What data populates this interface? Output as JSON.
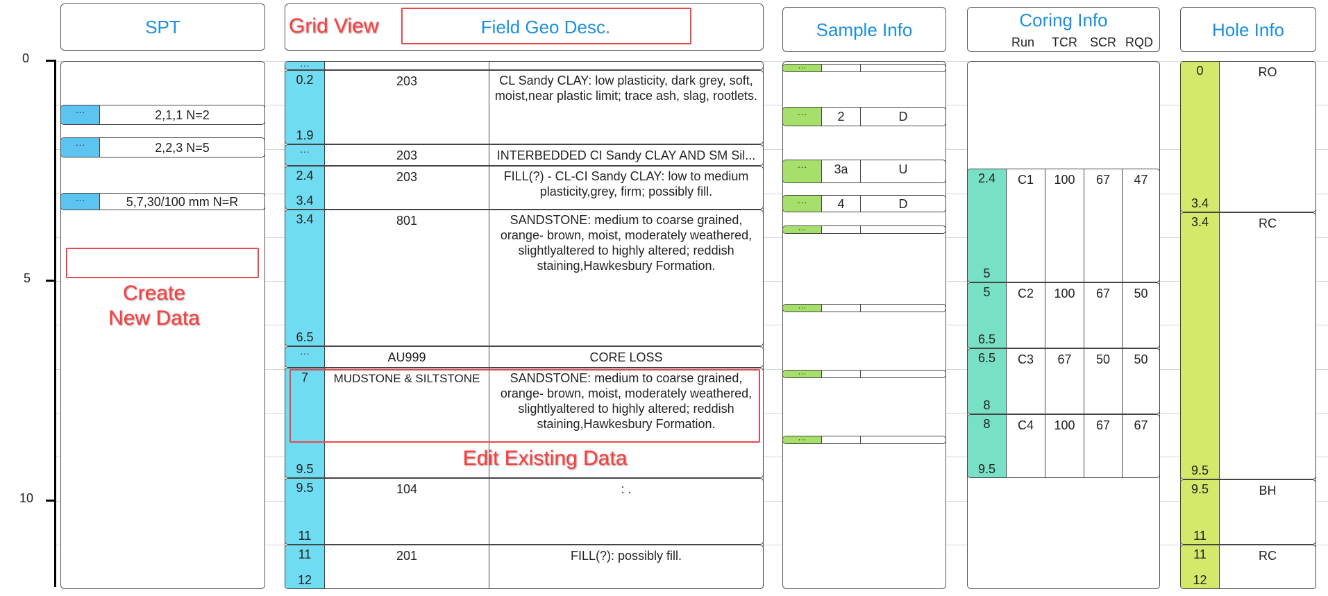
{
  "headers": {
    "spt": "SPT",
    "field_geo": "Field Geo Desc.",
    "sample_info": "Sample Info",
    "coring_info": "Coring Info",
    "coring_cols": [
      "Run",
      "TCR",
      "SCR",
      "RQD"
    ],
    "hole_info": "Hole Info"
  },
  "depth_axis": {
    "labels": [
      "0",
      "5",
      "10"
    ]
  },
  "spt": {
    "rows": [
      {
        "handle": "···",
        "value": "2,1,1 N=2"
      },
      {
        "handle": "···",
        "value": "2,2,3 N=5"
      },
      {
        "handle": "···",
        "value": "5,7,30/100 mm N=R"
      }
    ]
  },
  "geo": {
    "rows": [
      {
        "top": "···",
        "bottom": "",
        "code": "",
        "desc": ""
      },
      {
        "top": "0.2",
        "bottom": "1.9",
        "code": "203",
        "desc": "CL Sandy CLAY: low plasticity, dark grey, soft, moist,near plastic limit; trace ash, slag, rootlets."
      },
      {
        "top": "···",
        "bottom": "",
        "code": "203",
        "desc": "INTERBEDDED CI Sandy CLAY AND SM Sil..."
      },
      {
        "top": "2.4",
        "bottom": "3.4",
        "code": "203",
        "desc": "FILL(?) - CL-CI Sandy CLAY: low to medium plasticity,grey, firm; possibly fill."
      },
      {
        "top": "3.4",
        "bottom": "6.5",
        "code": "801",
        "desc": "SANDSTONE: medium to coarse grained, orange- brown, moist, moderately weathered, slightlyaltered to highly altered; reddish staining,Hawkesbury Formation."
      },
      {
        "top": "···",
        "bottom": "",
        "code": "AU999",
        "desc": "CORE LOSS"
      },
      {
        "top": "7",
        "bottom": "9.5",
        "code": "MUDSTONE & SILTSTONE",
        "desc": "SANDSTONE: medium to coarse grained, orange- brown, moist, moderately weathered, slightlyaltered to highly altered; reddish staining,Hawkesbury Formation."
      },
      {
        "top": "9.5",
        "bottom": "11",
        "code": "104",
        "desc": ": ."
      },
      {
        "top": "11",
        "bottom": "12",
        "code": "201",
        "desc": "FILL(?): possibly fill."
      }
    ]
  },
  "sample": {
    "rows": [
      {
        "handle": "···",
        "num": "",
        "type": ""
      },
      {
        "handle": "···",
        "num": "2",
        "type": "D"
      },
      {
        "handle": "···",
        "num": "3a",
        "type": "U"
      },
      {
        "handle": "···",
        "num": "4",
        "type": "D"
      },
      {
        "handle": "···",
        "num": "",
        "type": ""
      },
      {
        "handle": "···",
        "num": "",
        "type": ""
      },
      {
        "handle": "···",
        "num": "",
        "type": ""
      },
      {
        "handle": "···",
        "num": "",
        "type": ""
      }
    ]
  },
  "coring": {
    "rows": [
      {
        "top": "2.4",
        "bottom": "5",
        "run": "C1",
        "tcr": "100",
        "scr": "67",
        "rqd": "47"
      },
      {
        "top": "5",
        "bottom": "6.5",
        "run": "C2",
        "tcr": "100",
        "scr": "67",
        "rqd": "50"
      },
      {
        "top": "6.5",
        "bottom": "8",
        "run": "C3",
        "tcr": "67",
        "scr": "50",
        "rqd": "50"
      },
      {
        "top": "8",
        "bottom": "9.5",
        "run": "C4",
        "tcr": "100",
        "scr": "67",
        "rqd": "67"
      }
    ]
  },
  "hole": {
    "rows": [
      {
        "top": "0",
        "bottom": "3.4",
        "method": "RO"
      },
      {
        "top": "3.4",
        "bottom": "9.5",
        "method": "RC"
      },
      {
        "top": "9.5",
        "bottom": "11",
        "method": "BH"
      },
      {
        "top": "11",
        "bottom": "12",
        "method": "RC"
      }
    ]
  },
  "annotations": {
    "grid_view": "Grid View",
    "create_new": "Create\nNew Data",
    "edit_existing": "Edit Existing Data"
  },
  "colors": {
    "header_text": "#1a8fe0",
    "geo_depth": "#6fdcf2",
    "spt_handle": "#5bc4f0",
    "sample_handle": "#a6e06a",
    "coring_depth": "#78e0c4",
    "hole_depth": "#d4e86a",
    "annotation": "#e8474b"
  }
}
